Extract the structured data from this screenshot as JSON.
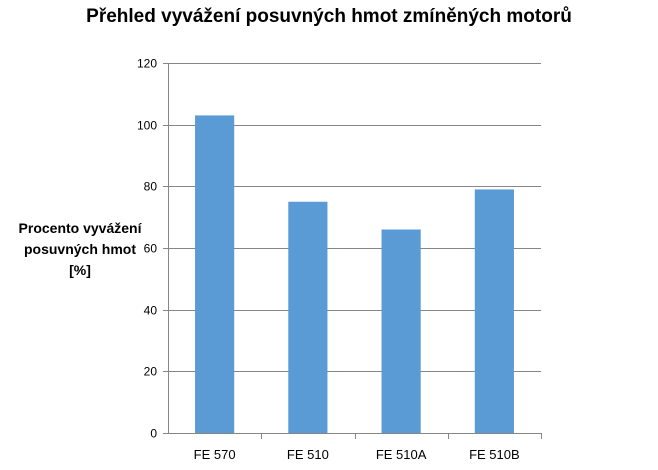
{
  "chart_data": {
    "type": "bar",
    "title": "Přehled vyvážení posuvných hmot zmíněných motorů",
    "ylabel_lines": [
      "Procento vyvážení",
      "posuvných hmot",
      "[%]"
    ],
    "xlabel": "",
    "categories": [
      "FE 570",
      "FE 510",
      "FE 510A",
      "FE 510B"
    ],
    "values": [
      103,
      75,
      66,
      79
    ],
    "ylim": [
      0,
      120
    ],
    "yticks": [
      0,
      20,
      40,
      60,
      80,
      100,
      120
    ],
    "grid": true,
    "bar_color": "#5B9BD5",
    "grid_color": "#868686"
  }
}
